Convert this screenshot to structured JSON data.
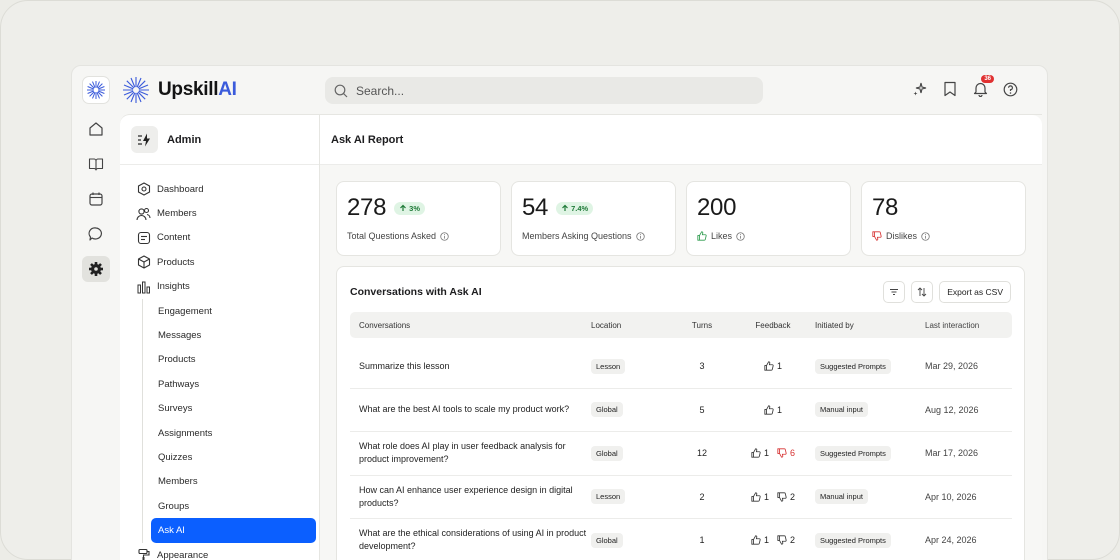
{
  "brand": {
    "name_main": "Upskill",
    "name_accent": "AI"
  },
  "search": {
    "placeholder": "Search..."
  },
  "notifications": {
    "count": "36"
  },
  "sidebar": {
    "title": "Admin",
    "items": [
      {
        "label": "Dashboard",
        "icon": "dashboard-icon"
      },
      {
        "label": "Members",
        "icon": "members-icon"
      },
      {
        "label": "Content",
        "icon": "content-icon"
      },
      {
        "label": "Products",
        "icon": "products-icon"
      },
      {
        "label": "Insights",
        "icon": "insights-icon"
      }
    ],
    "insights_sub": [
      "Engagement",
      "Messages",
      "Products",
      "Pathways",
      "Surveys",
      "Assignments",
      "Quizzes",
      "Members",
      "Groups",
      "Ask AI"
    ],
    "after": {
      "label": "Appearance",
      "icon": "appearance-icon"
    }
  },
  "main": {
    "title": "Ask AI Report",
    "stats": [
      {
        "value": "278",
        "delta": "3%",
        "label": "Total Questions Asked"
      },
      {
        "value": "54",
        "delta": "7.4%",
        "label": "Members Asking Questions"
      },
      {
        "value": "200",
        "label": "Likes"
      },
      {
        "value": "78",
        "label": "Dislikes"
      }
    ],
    "table": {
      "title": "Conversations with Ask AI",
      "export_label": "Export as CSV",
      "headers": [
        "Conversations",
        "Location",
        "Turns",
        "Feedback",
        "Initiated by",
        "Last interaction"
      ],
      "rows": [
        {
          "conversation": "Summarize this lesson",
          "location": "Lesson",
          "turns": "3",
          "likes": "1",
          "dislikes": "",
          "initiated_by": "Suggested Prompts",
          "last": "Mar 29, 2026"
        },
        {
          "conversation": "What are the best AI tools to scale my product work?",
          "location": "Global",
          "turns": "5",
          "likes": "1",
          "dislikes": "",
          "initiated_by": "Manual input",
          "last": "Aug 12, 2026"
        },
        {
          "conversation": "What role does AI play in user feedback analysis for product improvement?",
          "location": "Global",
          "turns": "12",
          "likes": "1",
          "dislikes": "6",
          "dislike_alert": true,
          "initiated_by": "Suggested Prompts",
          "last": "Mar 17, 2026"
        },
        {
          "conversation": "How can AI enhance user experience design in digital products?",
          "location": "Lesson",
          "turns": "2",
          "likes": "1",
          "dislikes": "2",
          "initiated_by": "Manual input",
          "last": "Apr 10, 2026"
        },
        {
          "conversation": "What are the ethical considerations of using AI in product development?",
          "location": "Global",
          "turns": "1",
          "likes": "1",
          "dislikes": "2",
          "initiated_by": "Suggested Prompts",
          "last": "Apr 24, 2026"
        }
      ]
    }
  }
}
